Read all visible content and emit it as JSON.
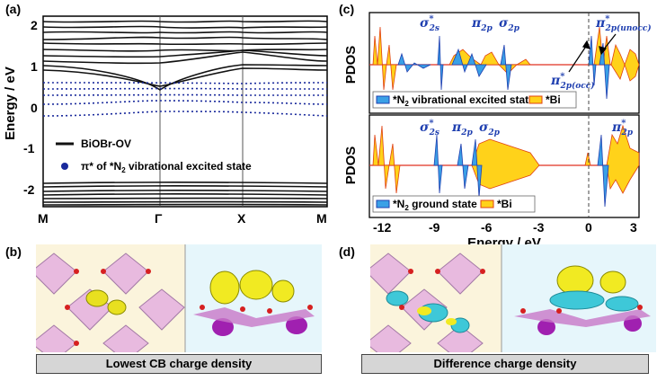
{
  "panels": {
    "a": {
      "label": "(a)",
      "ylabel": "Energy / eV",
      "yticks": [
        "-2",
        "-1",
        "0",
        "1",
        "2"
      ],
      "kpoints": [
        "M",
        "Γ",
        "X",
        "M"
      ],
      "legend_line": "BiOBr-OV",
      "legend_dot_prefix": "π* of *N",
      "legend_dot_sub": "2",
      "legend_dot_suffix": " vibrational excited state",
      "colors": {
        "bands": "#111111",
        "pi_star": "#1a2a9c"
      }
    },
    "b": {
      "label": "(b)",
      "caption": "Lowest CB charge density"
    },
    "c": {
      "label": "(c)",
      "ylabel": "PDOS",
      "xlabel": "Energy / eV",
      "xticks": [
        "-12",
        "-9",
        "-6",
        "-3",
        "0",
        "3"
      ],
      "top_legend_n2": "*N",
      "top_legend_n2_sub": "2",
      "top_legend_n2_suffix": " vibrational excited state",
      "top_legend_bi": "*Bi",
      "bottom_legend_n2": "*N",
      "bottom_legend_n2_sub": "2",
      "bottom_legend_n2_suffix": " ground state",
      "bottom_legend_bi": "*Bi",
      "peaks": {
        "sigma_star": "σ",
        "sigma_star_sup": "*",
        "sigma_star_sub": "2s",
        "pi": "π",
        "pi_sub": "2p",
        "sigma": "σ",
        "sigma_sub": "2p",
        "pi_star": "π",
        "pi_star_sup": "*",
        "pi_star_sub": "2p",
        "unocc": "(unocc)",
        "occ": "(occ)"
      },
      "colors": {
        "n2": "#3aa0e6",
        "n2_edge": "#1f3fb0",
        "bi": "#ffd21a",
        "bi_edge": "#e04010",
        "zero_line": "#e03020"
      }
    },
    "d": {
      "label": "(d)",
      "caption": "Difference charge density"
    }
  }
}
